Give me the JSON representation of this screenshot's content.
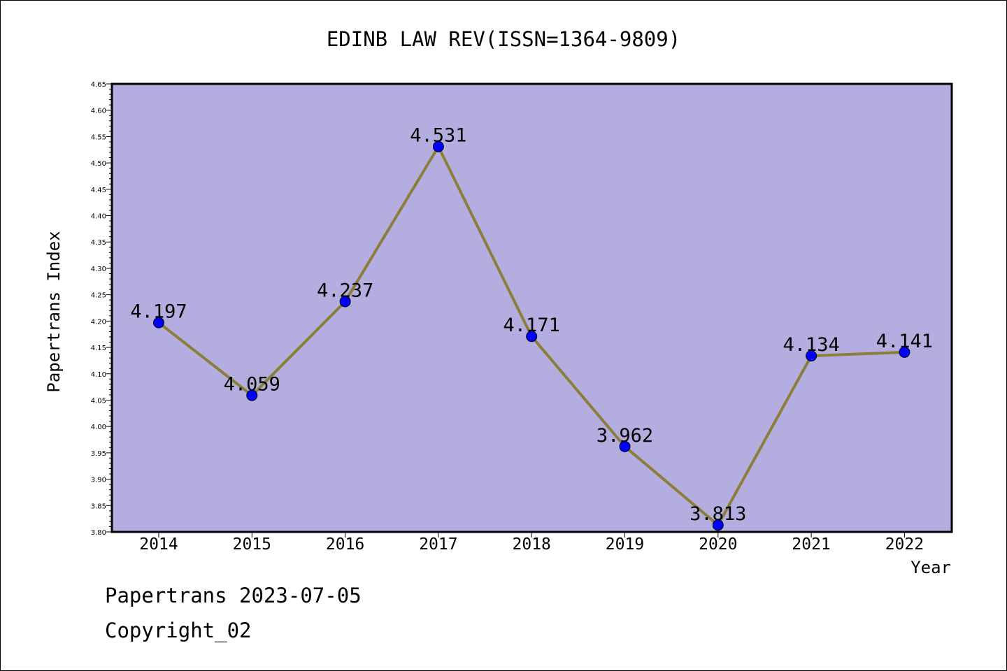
{
  "chart_data": {
    "type": "line",
    "title": "EDINB LAW REV(ISSN=1364-9809)",
    "xlabel": "Year",
    "ylabel": "Papertrans Index",
    "categories": [
      "2014",
      "2015",
      "2016",
      "2017",
      "2018",
      "2019",
      "2020",
      "2021",
      "2022"
    ],
    "series": [
      {
        "values": [
          4.197,
          4.059,
          4.237,
          4.531,
          4.171,
          3.962,
          3.813,
          4.134,
          4.141
        ],
        "data_labels": [
          "4.197",
          "4.059",
          "4.237",
          "4.531",
          "4.171",
          "3.962",
          "3.813",
          "4.134",
          "4.141"
        ]
      }
    ],
    "ylim": [
      3.8,
      4.65
    ],
    "yticks": [
      "3.80",
      "3.85",
      "3.90",
      "3.95",
      "4.00",
      "4.05",
      "4.10",
      "4.15",
      "4.20",
      "4.25",
      "4.30",
      "4.35",
      "4.40",
      "4.45",
      "4.50",
      "4.55",
      "4.60",
      "4.65"
    ],
    "grid": false,
    "legend": "none",
    "colors": {
      "plot_background": "#b4aee0",
      "line": "#8b7d3a",
      "marker": "#0000ff"
    }
  },
  "footer": {
    "date_text": "Papertrans 2023-07-05",
    "copyright_text": "Copyright_02"
  }
}
